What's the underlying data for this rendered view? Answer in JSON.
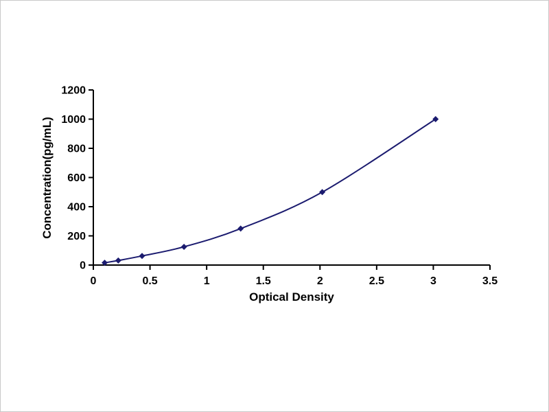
{
  "chart_data": {
    "type": "line",
    "title": "",
    "xlabel": "Optical Density",
    "ylabel": "Concentration(pg/mL)",
    "x": [
      0.1,
      0.22,
      0.43,
      0.8,
      1.3,
      2.02,
      3.02
    ],
    "y": [
      15.6,
      31.2,
      62.5,
      125,
      250,
      500,
      1000
    ],
    "xlim": [
      0,
      3.5
    ],
    "ylim": [
      0,
      1200
    ],
    "x_ticks": [
      0,
      0.5,
      1,
      1.5,
      2,
      2.5,
      3,
      3.5
    ],
    "x_tick_labels": [
      "0",
      "0.5",
      "1",
      "1.5",
      "2",
      "2.5",
      "3",
      "3.5"
    ],
    "y_ticks": [
      0,
      200,
      400,
      600,
      800,
      1000,
      1200
    ],
    "y_tick_labels": [
      "0",
      "200",
      "400",
      "600",
      "800",
      "1000",
      "1200"
    ],
    "grid": false,
    "legend": "none",
    "marker": "diamond",
    "line_color": "#1b1b6f",
    "marker_color": "#1b1b6f",
    "axis_color": "#000000",
    "plot_background": "#ffffff"
  }
}
